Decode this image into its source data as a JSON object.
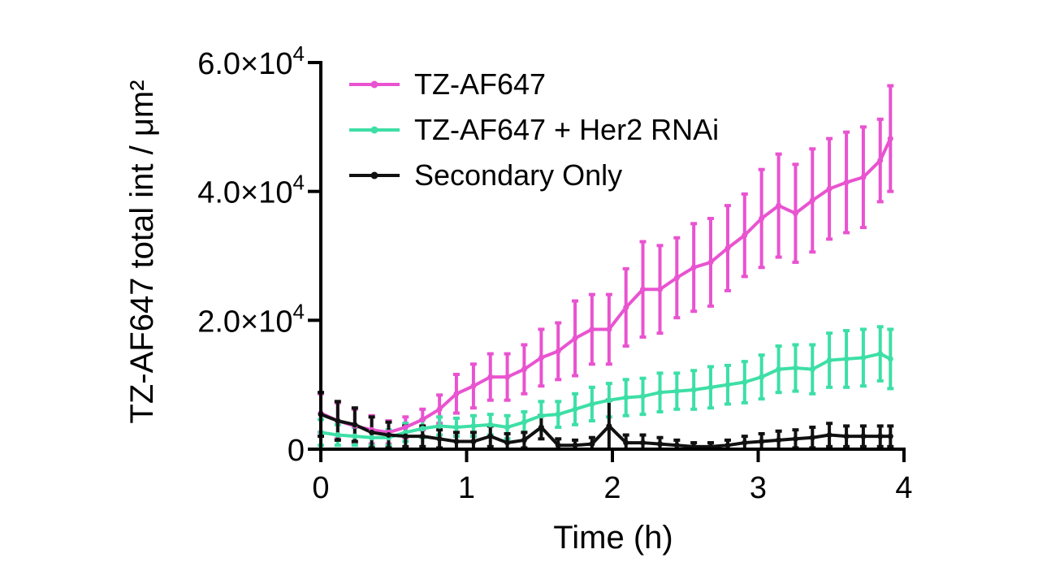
{
  "chart_data": {
    "type": "line",
    "xlabel": "Time (h)",
    "ylabel": "TZ-AF647 total int / μm²",
    "xlim": [
      0,
      4
    ],
    "ylim": [
      0,
      60000
    ],
    "x_ticks": [
      {
        "value": 0,
        "label": "0"
      },
      {
        "value": 1,
        "label": "1"
      },
      {
        "value": 2,
        "label": "2"
      },
      {
        "value": 3,
        "label": "3"
      },
      {
        "value": 4,
        "label": "4"
      }
    ],
    "y_ticks": [
      {
        "value": 0,
        "label": "0",
        "mantissa": "",
        "exp": ""
      },
      {
        "value": 20000,
        "label": "2.0×10⁴",
        "mantissa": "2.0×10",
        "exp": "4"
      },
      {
        "value": 40000,
        "label": "4.0×10⁴",
        "mantissa": "4.0×10",
        "exp": "4"
      },
      {
        "value": 60000,
        "label": "6.0×10⁴",
        "mantissa": "6.0×10",
        "exp": "4"
      }
    ],
    "grid": false,
    "legend_position": "top-left",
    "series": [
      {
        "name": "TZ-AF647",
        "color": "#e953d0",
        "x": [
          0,
          0.116,
          0.233,
          0.349,
          0.465,
          0.581,
          0.698,
          0.814,
          0.93,
          1.047,
          1.163,
          1.279,
          1.395,
          1.512,
          1.628,
          1.744,
          1.86,
          1.977,
          2.093,
          2.209,
          2.326,
          2.442,
          2.558,
          2.674,
          2.791,
          2.907,
          3.023,
          3.14,
          3.256,
          3.372,
          3.488,
          3.605,
          3.721,
          3.837,
          3.907
        ],
        "y": [
          5600,
          4400,
          3600,
          3000,
          2600,
          3400,
          4600,
          6200,
          8600,
          9800,
          11200,
          11200,
          12400,
          14200,
          15200,
          17200,
          18600,
          18600,
          22000,
          24800,
          24800,
          26600,
          28200,
          29000,
          31200,
          33200,
          35800,
          37800,
          36600,
          38600,
          40400,
          41400,
          42200,
          44800,
          48200
        ],
        "err": [
          3000,
          2800,
          2600,
          2200,
          1800,
          1600,
          1600,
          2200,
          3000,
          3400,
          3600,
          3600,
          3800,
          4400,
          4400,
          5800,
          5400,
          5400,
          6000,
          7400,
          6800,
          6200,
          6800,
          6800,
          6600,
          6400,
          7600,
          8000,
          7600,
          8000,
          7800,
          7800,
          7800,
          6400,
          8200
        ]
      },
      {
        "name": "TZ-AF647 + Her2 RNAi",
        "color": "#3ddfa6",
        "x": [
          0,
          0.116,
          0.233,
          0.349,
          0.465,
          0.581,
          0.698,
          0.814,
          0.93,
          1.047,
          1.163,
          1.279,
          1.395,
          1.512,
          1.628,
          1.744,
          1.86,
          1.977,
          2.093,
          2.209,
          2.326,
          2.442,
          2.558,
          2.674,
          2.791,
          2.907,
          3.023,
          3.14,
          3.256,
          3.372,
          3.488,
          3.605,
          3.721,
          3.837,
          3.907
        ],
        "y": [
          2600,
          2200,
          2000,
          1800,
          1800,
          2600,
          3200,
          3600,
          3400,
          3600,
          3800,
          3400,
          4200,
          5200,
          5400,
          6200,
          7000,
          7600,
          8000,
          8200,
          8800,
          9000,
          9200,
          9600,
          10000,
          10400,
          11200,
          12400,
          12600,
          12400,
          13800,
          14000,
          14200,
          14800,
          14000
        ],
        "err": [
          2000,
          1600,
          1400,
          1200,
          1200,
          1400,
          1400,
          1400,
          1400,
          1600,
          1600,
          1800,
          1600,
          2200,
          2000,
          2400,
          2600,
          2600,
          2800,
          2800,
          3000,
          2800,
          3000,
          3200,
          3000,
          3200,
          3400,
          3600,
          3600,
          3800,
          4200,
          4400,
          4400,
          4200,
          4600
        ]
      },
      {
        "name": "Secondary Only",
        "color": "#111111",
        "x": [
          0,
          0.116,
          0.233,
          0.349,
          0.465,
          0.581,
          0.698,
          0.814,
          0.93,
          1.047,
          1.163,
          1.279,
          1.395,
          1.512,
          1.628,
          1.744,
          1.86,
          1.977,
          2.093,
          2.209,
          2.326,
          2.442,
          2.558,
          2.674,
          2.791,
          2.907,
          3.023,
          3.14,
          3.256,
          3.372,
          3.488,
          3.605,
          3.721,
          3.837,
          3.907
        ],
        "y": [
          5400,
          4400,
          3800,
          2600,
          2200,
          2000,
          2000,
          1600,
          1200,
          1200,
          2000,
          1000,
          1400,
          3400,
          600,
          600,
          800,
          3600,
          1000,
          1000,
          800,
          600,
          400,
          400,
          600,
          1000,
          1200,
          1400,
          1600,
          1800,
          2200,
          2000,
          2000,
          2000,
          2000
        ],
        "err": [
          3400,
          3000,
          2600,
          2400,
          2000,
          1600,
          1600,
          1400,
          1400,
          1400,
          1600,
          1400,
          1200,
          1800,
          1000,
          800,
          1000,
          4000,
          1200,
          1200,
          1000,
          800,
          600,
          600,
          800,
          1000,
          1200,
          1400,
          1400,
          1600,
          1800,
          1600,
          1600,
          1600,
          1600
        ]
      }
    ]
  }
}
